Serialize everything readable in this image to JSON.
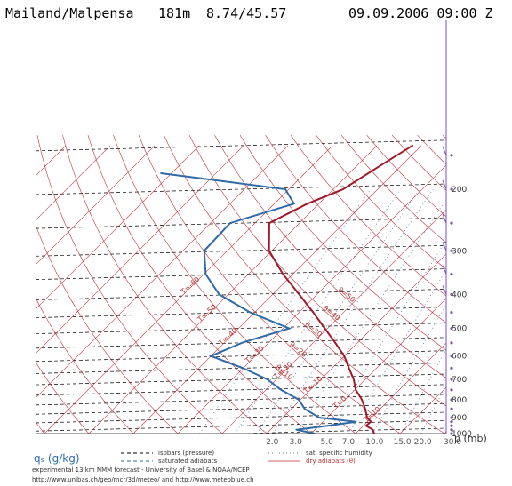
{
  "header": {
    "station": "Mailand/Malpensa",
    "elevation": "181m",
    "coords": "8.74/45.57",
    "datetime": "09.09.2006 09:00 Z"
  },
  "chart_data": {
    "type": "line",
    "title": "Mailand/Malpensa   181m  8.74/45.57",
    "xlabel": "qₛ (g/kg)",
    "ylabel": "p (mb)",
    "pressure_ticks": [
      200,
      300,
      400,
      500,
      600,
      700,
      800,
      900,
      1000
    ],
    "pressure_tick_labels": [
      "200",
      "300",
      "400",
      "500",
      "600",
      "700",
      "800",
      "900",
      "1000"
    ],
    "humidity_ticks": [
      2.0,
      3.0,
      5.0,
      7.0,
      10.0,
      15.0,
      20.0,
      30.0
    ],
    "humidity_tick_labels": [
      "2.0",
      "3.0",
      "5.0",
      "7.0",
      "10.0",
      "15.0",
      "20.0",
      "30.0"
    ],
    "isotherm_labels": [
      "T=-60",
      "T=-50",
      "T=-40",
      "T=-30",
      "T=-20",
      "T=-10",
      "T=0",
      "T=10"
    ],
    "adiabat_labels": [
      "θ=50",
      "θ=40",
      "θ=30",
      "θ=20",
      "θ=10"
    ],
    "series": [
      {
        "name": "temperature",
        "color": "#a0182a",
        "points": [
          [
            1000,
            14.2
          ],
          [
            975,
            13.0
          ],
          [
            950,
            10.6
          ],
          [
            925,
            10.8
          ],
          [
            900,
            9.0
          ],
          [
            850,
            6.6
          ],
          [
            800,
            3.8
          ],
          [
            750,
            0.2
          ],
          [
            700,
            -2.6
          ],
          [
            650,
            -6.2
          ],
          [
            600,
            -10.0
          ],
          [
            550,
            -15.0
          ],
          [
            500,
            -20.6
          ],
          [
            450,
            -26.8
          ],
          [
            400,
            -34.0
          ],
          [
            350,
            -42.2
          ],
          [
            300,
            -50.6
          ],
          [
            250,
            -56.8
          ],
          [
            220,
            -52.6
          ],
          [
            200,
            -47.8
          ],
          [
            170,
            -44.6
          ],
          [
            150,
            -42.0
          ]
        ]
      },
      {
        "name": "dewpoint",
        "color": "#2f6aa8",
        "points": [
          [
            1000,
            0.8
          ],
          [
            975,
            -4.2
          ],
          [
            950,
            2.0
          ],
          [
            925,
            7.4
          ],
          [
            900,
            -1.8
          ],
          [
            850,
            -7.0
          ],
          [
            800,
            -10.4
          ],
          [
            750,
            -16.6
          ],
          [
            700,
            -22.0
          ],
          [
            650,
            -30.0
          ],
          [
            600,
            -40.0
          ],
          [
            550,
            -36.0
          ],
          [
            500,
            -28.6
          ],
          [
            450,
            -41.0
          ],
          [
            400,
            -52.0
          ],
          [
            350,
            -59.6
          ],
          [
            300,
            -65.2
          ],
          [
            250,
            -65.6
          ],
          [
            220,
            -55.6
          ],
          [
            200,
            -60.8
          ],
          [
            180,
            -92.4
          ]
        ]
      }
    ],
    "wind_barbs_present": true,
    "grid": true
  },
  "legend": {
    "isobars": "isobars (pressure)",
    "sat_adiabats": "saturated adiabats",
    "specific_humidity": "sat. specific humidity",
    "dry_adiabats": "dry adiabats (θ)"
  },
  "footer": {
    "line1": "experimental 13 km NMM forecast - University of Basel & NOAA/NCEP",
    "line2": "http://www.unibas.ch/geo/mcr/3d/meteo/ and http://www.meteoblue.ch"
  }
}
